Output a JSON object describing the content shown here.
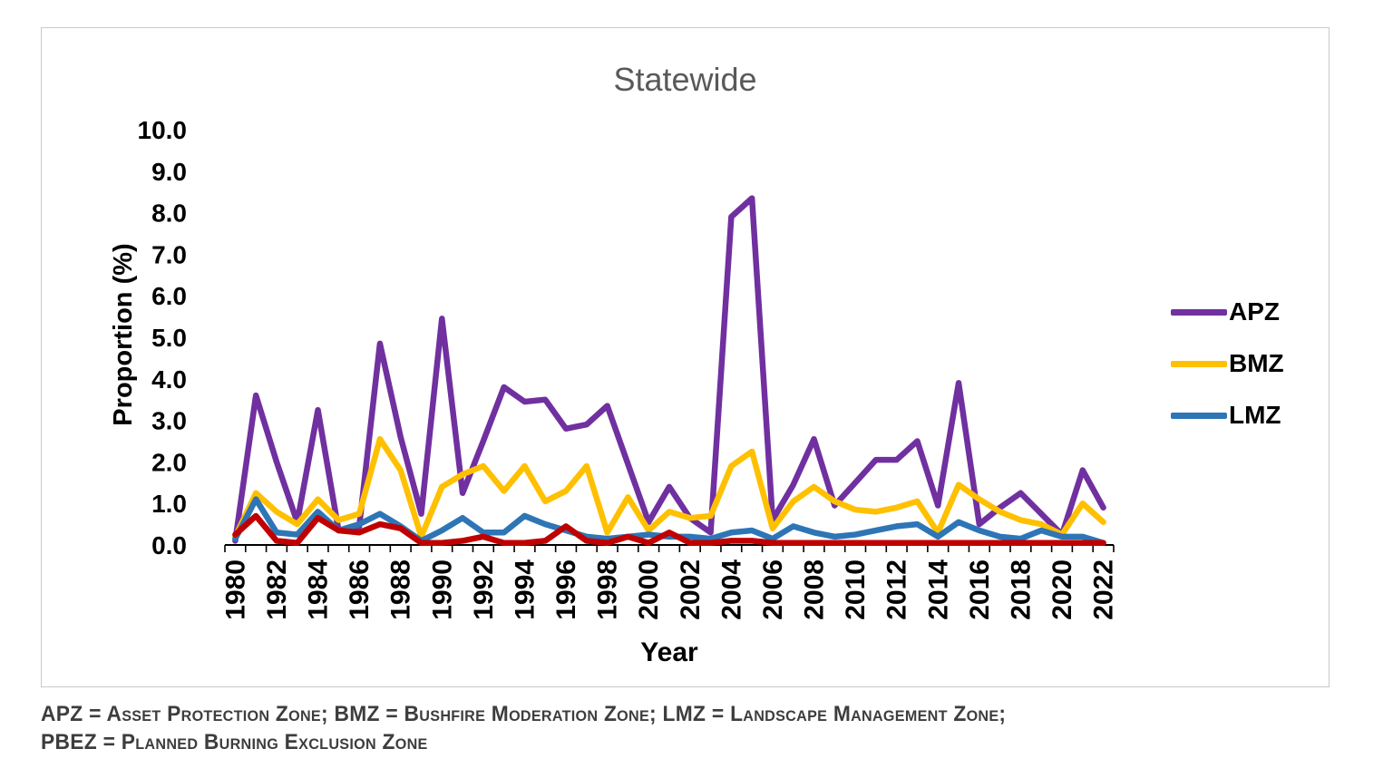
{
  "caption": {
    "line1": "APZ = Asset Protection Zone; BMZ = Bushfire Moderation Zone; LMZ = Landscape Management Zone;",
    "line2": "PBEZ = Planned Burning Exclusion Zone"
  },
  "chart_data": {
    "type": "line",
    "title": "Statewide",
    "xlabel": "Year",
    "ylabel": "Proportion (%)",
    "ylim": [
      0,
      10
    ],
    "ytick_step": 1.0,
    "grid": false,
    "legend_position": "right",
    "legend_entries": [
      "APZ",
      "BMZ",
      "LMZ"
    ],
    "axis_color": "#000000",
    "title_color": "#595959",
    "x": [
      1980,
      1981,
      1982,
      1983,
      1984,
      1985,
      1986,
      1987,
      1988,
      1989,
      1990,
      1991,
      1992,
      1993,
      1994,
      1995,
      1996,
      1997,
      1998,
      1999,
      2000,
      2001,
      2002,
      2003,
      2004,
      2005,
      2006,
      2007,
      2008,
      2009,
      2010,
      2011,
      2012,
      2013,
      2014,
      2015,
      2016,
      2017,
      2018,
      2019,
      2020,
      2021,
      2022
    ],
    "x_tick_labels": [
      "1980",
      "1982",
      "1984",
      "1986",
      "1988",
      "1990",
      "1992",
      "1994",
      "1996",
      "1998",
      "2000",
      "2002",
      "2004",
      "2006",
      "2008",
      "2010",
      "2012",
      "2014",
      "2016",
      "2018",
      "2020",
      "2022"
    ],
    "y_tick_labels": [
      "0.0",
      "1.0",
      "2.0",
      "3.0",
      "4.0",
      "5.0",
      "6.0",
      "7.0",
      "8.0",
      "9.0",
      "10.0"
    ],
    "series": [
      {
        "name": "APZ",
        "color": "#7030A0",
        "in_legend": true,
        "values": [
          0.1,
          3.6,
          2.0,
          0.55,
          3.25,
          0.35,
          0.45,
          4.85,
          2.6,
          0.75,
          5.45,
          1.25,
          2.5,
          3.8,
          3.45,
          3.5,
          2.8,
          2.9,
          3.35,
          1.95,
          0.55,
          1.4,
          0.65,
          0.3,
          7.9,
          8.35,
          0.6,
          1.45,
          2.55,
          0.95,
          1.5,
          2.05,
          2.05,
          2.5,
          0.95,
          3.9,
          0.5,
          0.9,
          1.25,
          0.75,
          0.25,
          1.8,
          0.9
        ]
      },
      {
        "name": "BMZ",
        "color": "#FFC000",
        "in_legend": true,
        "values": [
          0.2,
          1.25,
          0.8,
          0.5,
          1.1,
          0.6,
          0.75,
          2.55,
          1.8,
          0.2,
          1.4,
          1.7,
          1.9,
          1.3,
          1.9,
          1.05,
          1.3,
          1.9,
          0.3,
          1.15,
          0.35,
          0.8,
          0.65,
          0.7,
          1.9,
          2.25,
          0.4,
          1.05,
          1.4,
          1.05,
          0.85,
          0.8,
          0.9,
          1.05,
          0.3,
          1.45,
          1.1,
          0.8,
          0.6,
          0.5,
          0.25,
          1.0,
          0.55
        ]
      },
      {
        "name": "LMZ",
        "color": "#2E75B6",
        "in_legend": true,
        "values": [
          0.15,
          1.1,
          0.3,
          0.25,
          0.8,
          0.35,
          0.5,
          0.75,
          0.45,
          0.1,
          0.35,
          0.65,
          0.3,
          0.3,
          0.7,
          0.5,
          0.35,
          0.2,
          0.15,
          0.2,
          0.25,
          0.2,
          0.2,
          0.15,
          0.3,
          0.35,
          0.15,
          0.45,
          0.3,
          0.2,
          0.25,
          0.35,
          0.45,
          0.5,
          0.2,
          0.55,
          0.35,
          0.2,
          0.15,
          0.35,
          0.2,
          0.2,
          0.05
        ]
      },
      {
        "name": "PBEZ",
        "color": "#C00000",
        "in_legend": false,
        "values": [
          0.25,
          0.7,
          0.1,
          0.05,
          0.65,
          0.35,
          0.3,
          0.5,
          0.4,
          0.05,
          0.05,
          0.1,
          0.2,
          0.05,
          0.05,
          0.1,
          0.45,
          0.1,
          0.05,
          0.2,
          0.05,
          0.3,
          0.05,
          0.05,
          0.1,
          0.1,
          0.05,
          0.05,
          0.05,
          0.05,
          0.05,
          0.05,
          0.05,
          0.05,
          0.05,
          0.05,
          0.05,
          0.05,
          0.05,
          0.05,
          0.05,
          0.05,
          0.05
        ]
      }
    ]
  }
}
